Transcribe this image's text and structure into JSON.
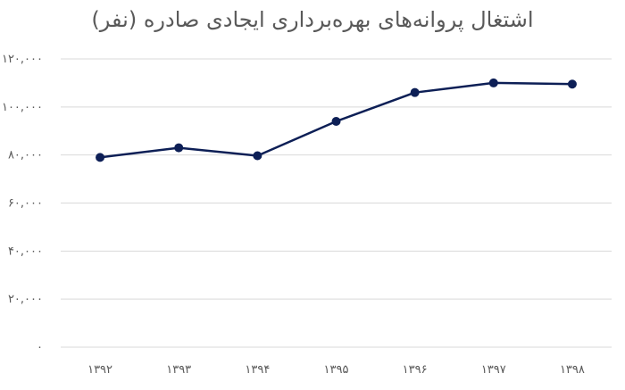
{
  "chart_data": {
    "type": "line",
    "title": "اشتغال پروانه‌های بهره‌برداری ایجادی صادره (نفر)",
    "xlabel": "",
    "ylabel": "",
    "categories": [
      "۱۳۹۲",
      "۱۳۹۳",
      "۱۳۹۴",
      "۱۳۹۵",
      "۱۳۹۶",
      "۱۳۹۷",
      "۱۳۹۸"
    ],
    "series": [
      {
        "values": [
          79000,
          83000,
          79700,
          94000,
          106000,
          110000,
          109500
        ]
      }
    ],
    "ylim": [
      0,
      120000
    ],
    "yticks": [
      0,
      20000,
      40000,
      60000,
      80000,
      100000,
      120000
    ],
    "ytick_labels": [
      "۰",
      "۲۰,۰۰۰",
      "۴۰,۰۰۰",
      "۶۰,۰۰۰",
      "۸۰,۰۰۰",
      "۱۰۰,۰۰۰",
      "۱۲۰,۰۰۰"
    ],
    "grid": true,
    "colors": {
      "line": "#0d1f56",
      "grid": "#d9d9d9",
      "text": "#595959"
    }
  }
}
